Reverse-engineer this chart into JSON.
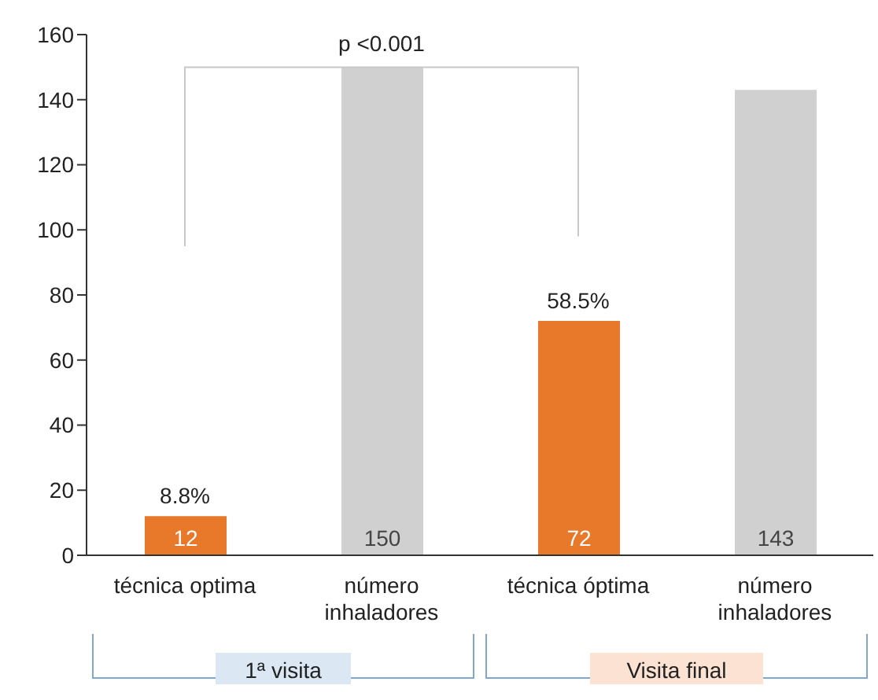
{
  "chart_data": {
    "type": "bar",
    "categories": [
      "técnica optima",
      "número inhaladores",
      "técnica óptima",
      "número inhaladores"
    ],
    "values": [
      12,
      150,
      72,
      143
    ],
    "colors": [
      "#e8782a",
      "#d0d0d0",
      "#e8782a",
      "#d0d0d0"
    ],
    "data_labels": true,
    "ylim": [
      0,
      160
    ],
    "yticks": [
      0,
      20,
      40,
      60,
      80,
      100,
      120,
      140,
      160
    ],
    "grid": false,
    "legend": false,
    "annotations": [
      {
        "text": "8.8%",
        "x": "técnica optima",
        "y": 12
      },
      {
        "text": "58.5%",
        "x": "técnica óptima",
        "y": 72
      },
      "p <0.001",
      "1ª visita",
      "Visita final"
    ]
  }
}
